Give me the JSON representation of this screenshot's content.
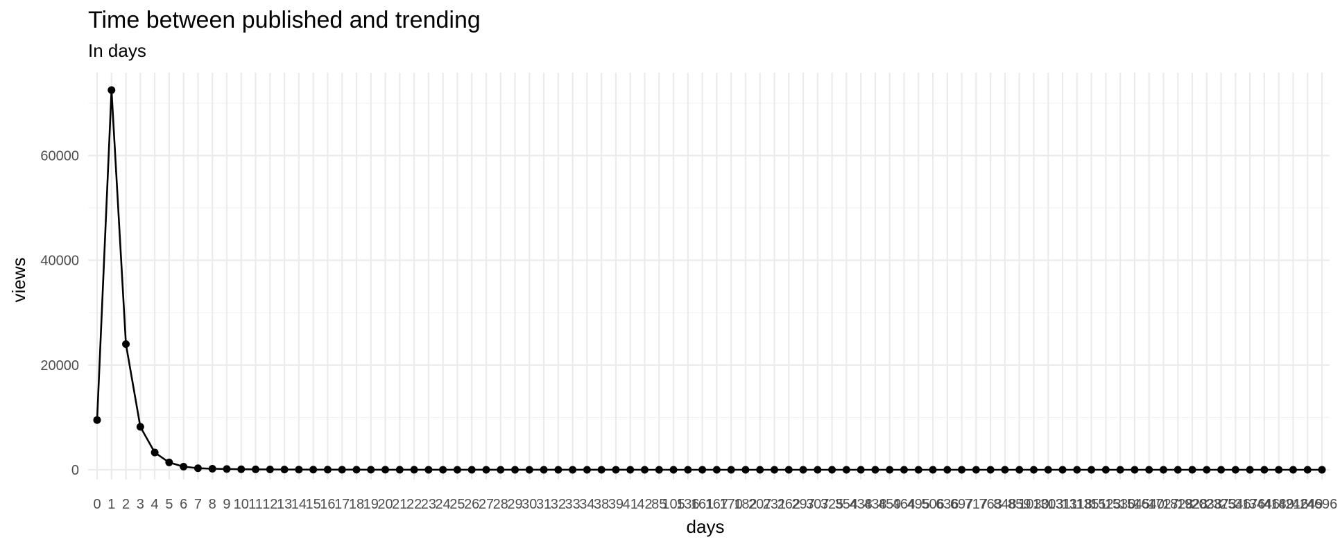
{
  "chart_data": {
    "type": "line",
    "title": "Time between published and trending",
    "subtitle": "In days",
    "xlabel": "days",
    "ylabel": "views",
    "ylim": [
      0,
      72500
    ],
    "y_ticks": [
      0,
      20000,
      40000,
      60000
    ],
    "y_tick_labels": [
      "0",
      "20000",
      "40000",
      "60000"
    ],
    "grid": true,
    "legend": "none",
    "line_color": "#000000",
    "point_color": "#000000",
    "categories": [
      "0",
      "1",
      "2",
      "3",
      "4",
      "5",
      "6",
      "7",
      "8",
      "9",
      "10",
      "11",
      "12",
      "13",
      "14",
      "15",
      "16",
      "17",
      "18",
      "19",
      "20",
      "21",
      "22",
      "23",
      "24",
      "25",
      "26",
      "27",
      "28",
      "29",
      "30",
      "31",
      "32",
      "33",
      "34",
      "38",
      "39",
      "41",
      "42",
      "85",
      "105",
      "136",
      "161",
      "167",
      "170",
      "182",
      "207",
      "231",
      "262",
      "297",
      "307",
      "325",
      "354",
      "438",
      "438",
      "459",
      "464",
      "495",
      "506",
      "636",
      "697",
      "717",
      "763",
      "848",
      "859",
      "1030",
      "1303",
      "1311",
      "1318",
      "1351",
      "1523",
      "1530",
      "1545",
      "1640",
      "1727",
      "1828",
      "1928",
      "2038",
      "2373",
      "2546",
      "3176",
      "3446",
      "4189",
      "4216",
      "4249",
      "4696"
    ],
    "series": [
      {
        "values": [
          9500,
          72500,
          24000,
          8200,
          3300,
          1400,
          600,
          300,
          200,
          150,
          100,
          80,
          60,
          50,
          40,
          30,
          25,
          20,
          18,
          15,
          12,
          10,
          9,
          8,
          7,
          6,
          5,
          5,
          4,
          4,
          3,
          3,
          3,
          2,
          2,
          2,
          2,
          2,
          1,
          1,
          1,
          1,
          1,
          1,
          1,
          1,
          1,
          1,
          1,
          1,
          1,
          1,
          1,
          1,
          1,
          1,
          1,
          1,
          1,
          1,
          1,
          1,
          1,
          1,
          1,
          1,
          1,
          1,
          1,
          1,
          1,
          1,
          1,
          1,
          1,
          1,
          1,
          1,
          1,
          1,
          1,
          1,
          1,
          1,
          1,
          1
        ]
      }
    ]
  }
}
